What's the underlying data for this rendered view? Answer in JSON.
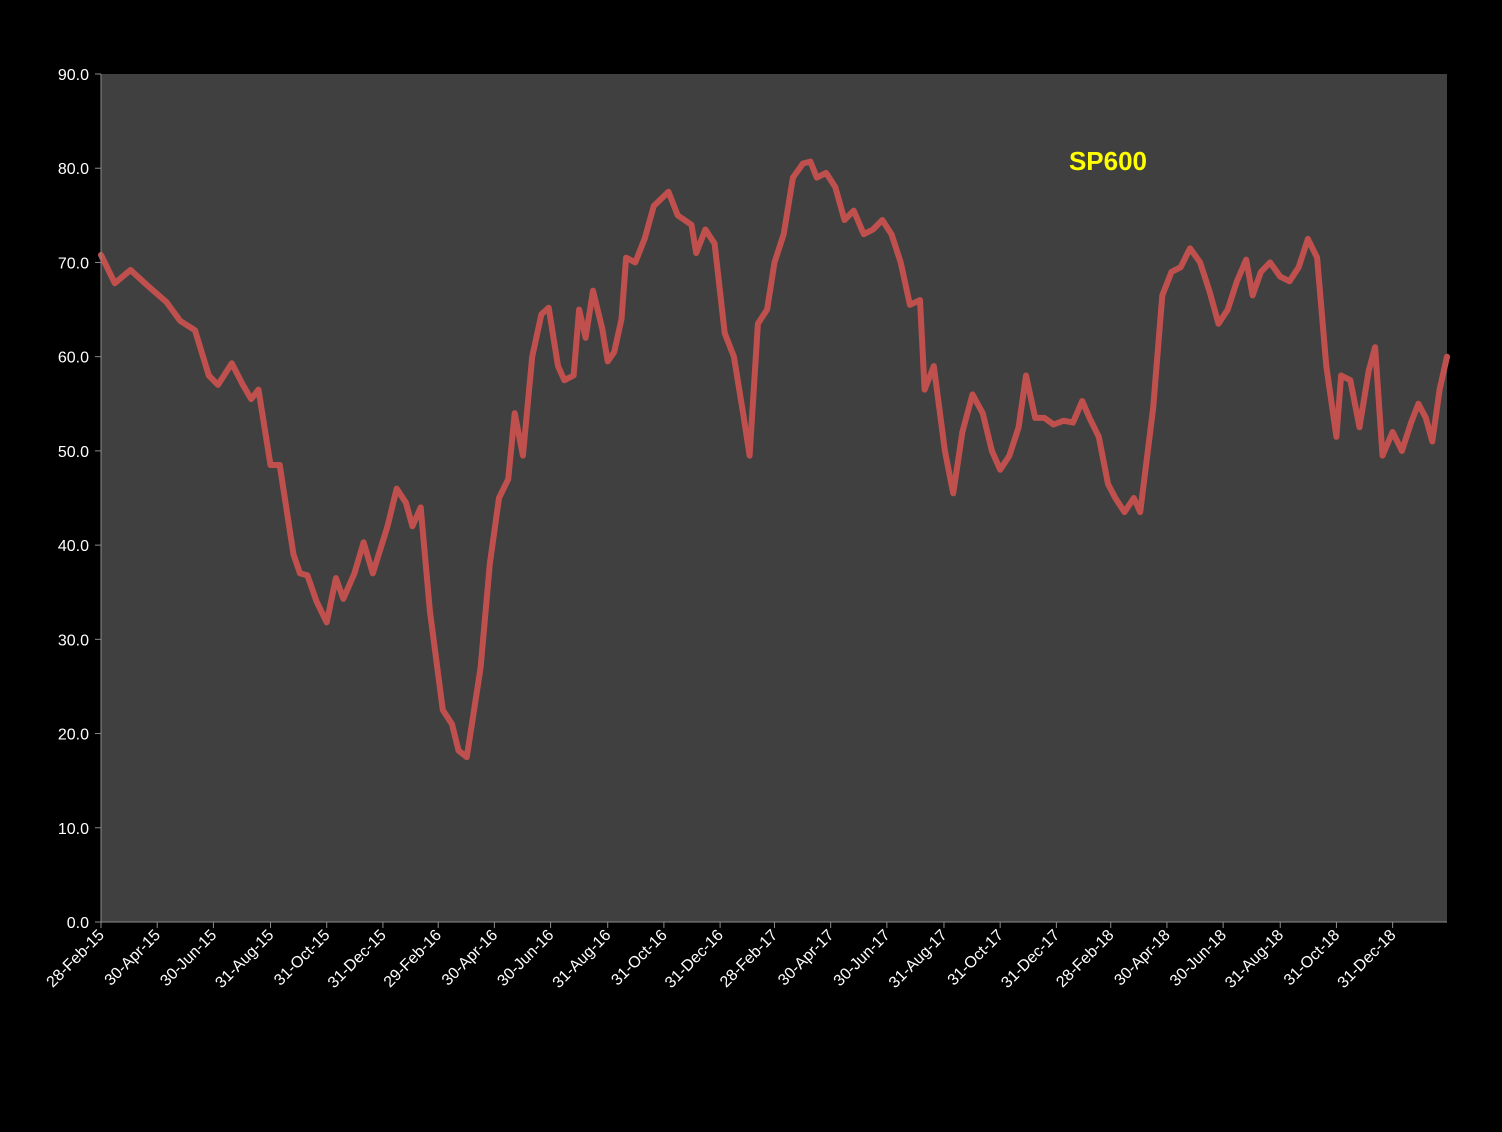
{
  "chart_data": {
    "type": "line",
    "title": "SP600",
    "xlabel": "",
    "ylabel": "",
    "ylim": [
      0,
      90
    ],
    "yticks": [
      0,
      10,
      20,
      30,
      40,
      50,
      60,
      70,
      80,
      90
    ],
    "ytick_labels": [
      "0.0",
      "10.0",
      "20.0",
      "30.0",
      "40.0",
      "50.0",
      "60.0",
      "70.0",
      "80.0",
      "90.0"
    ],
    "x_start": "2015-02-28",
    "x_end": "2019-02-28",
    "xtick_labels": [
      "28-Feb-15",
      "30-Apr-15",
      "30-Jun-15",
      "31-Aug-15",
      "31-Oct-15",
      "31-Dec-15",
      "29-Feb-16",
      "30-Apr-16",
      "30-Jun-16",
      "31-Aug-16",
      "31-Oct-16",
      "31-Dec-16",
      "28-Feb-17",
      "30-Apr-17",
      "30-Jun-17",
      "31-Aug-17",
      "31-Oct-17",
      "31-Dec-17",
      "28-Feb-18",
      "30-Apr-18",
      "30-Jun-18",
      "31-Aug-18",
      "31-Oct-18",
      "31-Dec-18"
    ],
    "grid": false,
    "legend": "none",
    "colors": {
      "background": "#000000",
      "plot_area": "#404040",
      "axis": "#8c8c8c",
      "tick_text": "#ffffff",
      "title": "#ffff00"
    },
    "series": [
      {
        "color": "#c0504d",
        "points": [
          [
            "2015-02-28",
            70.8
          ],
          [
            "2015-03-15",
            67.8
          ],
          [
            "2015-04-01",
            69.2
          ],
          [
            "2015-04-20",
            67.5
          ],
          [
            "2015-05-10",
            65.8
          ],
          [
            "2015-05-25",
            63.8
          ],
          [
            "2015-06-10",
            62.8
          ],
          [
            "2015-06-25",
            58.0
          ],
          [
            "2015-07-05",
            57.0
          ],
          [
            "2015-07-20",
            59.3
          ],
          [
            "2015-08-01",
            57.0
          ],
          [
            "2015-08-10",
            55.5
          ],
          [
            "2015-08-18",
            56.5
          ],
          [
            "2015-08-31",
            48.5
          ],
          [
            "2015-09-10",
            48.5
          ],
          [
            "2015-09-25",
            39.0
          ],
          [
            "2015-10-02",
            37.0
          ],
          [
            "2015-10-10",
            36.8
          ],
          [
            "2015-10-20",
            34.0
          ],
          [
            "2015-10-31",
            31.8
          ],
          [
            "2015-11-10",
            36.5
          ],
          [
            "2015-11-18",
            34.3
          ],
          [
            "2015-11-30",
            37.0
          ],
          [
            "2015-12-10",
            40.3
          ],
          [
            "2015-12-20",
            37.0
          ],
          [
            "2016-01-05",
            42.0
          ],
          [
            "2016-01-15",
            46.0
          ],
          [
            "2016-01-25",
            44.5
          ],
          [
            "2016-02-01",
            42.0
          ],
          [
            "2016-02-10",
            44.0
          ],
          [
            "2016-02-20",
            33.0
          ],
          [
            "2016-03-05",
            22.5
          ],
          [
            "2016-03-15",
            21.0
          ],
          [
            "2016-03-22",
            18.2
          ],
          [
            "2016-03-31",
            17.5
          ],
          [
            "2016-04-15",
            27.0
          ],
          [
            "2016-04-25",
            38.0
          ],
          [
            "2016-05-05",
            45.0
          ],
          [
            "2016-05-15",
            47.0
          ],
          [
            "2016-05-22",
            54.0
          ],
          [
            "2016-05-31",
            49.5
          ],
          [
            "2016-06-10",
            60.0
          ],
          [
            "2016-06-20",
            64.5
          ],
          [
            "2016-06-28",
            65.2
          ],
          [
            "2016-07-08",
            59.0
          ],
          [
            "2016-07-15",
            57.5
          ],
          [
            "2016-07-25",
            58.0
          ],
          [
            "2016-07-31",
            65.0
          ],
          [
            "2016-08-07",
            62.0
          ],
          [
            "2016-08-15",
            67.0
          ],
          [
            "2016-08-25",
            63.0
          ],
          [
            "2016-08-31",
            59.5
          ],
          [
            "2016-09-07",
            60.5
          ],
          [
            "2016-09-15",
            64.0
          ],
          [
            "2016-09-20",
            70.5
          ],
          [
            "2016-09-30",
            70.0
          ],
          [
            "2016-10-10",
            72.5
          ],
          [
            "2016-10-20",
            76.0
          ],
          [
            "2016-11-05",
            77.5
          ],
          [
            "2016-11-15",
            75.0
          ],
          [
            "2016-11-30",
            74.0
          ],
          [
            "2016-12-05",
            71.0
          ],
          [
            "2016-12-15",
            73.5
          ],
          [
            "2016-12-25",
            72.0
          ],
          [
            "2017-01-05",
            62.5
          ],
          [
            "2017-01-15",
            60.0
          ],
          [
            "2017-01-25",
            54.0
          ],
          [
            "2017-02-01",
            49.5
          ],
          [
            "2017-02-10",
            63.5
          ],
          [
            "2017-02-20",
            65.0
          ],
          [
            "2017-02-28",
            70.0
          ],
          [
            "2017-03-10",
            73.0
          ],
          [
            "2017-03-20",
            79.0
          ],
          [
            "2017-03-31",
            80.5
          ],
          [
            "2017-04-08",
            80.7
          ],
          [
            "2017-04-15",
            79.0
          ],
          [
            "2017-04-25",
            79.5
          ],
          [
            "2017-05-05",
            78.0
          ],
          [
            "2017-05-15",
            74.5
          ],
          [
            "2017-05-25",
            75.5
          ],
          [
            "2017-06-05",
            73.0
          ],
          [
            "2017-06-15",
            73.5
          ],
          [
            "2017-06-25",
            74.5
          ],
          [
            "2017-07-05",
            73.0
          ],
          [
            "2017-07-15",
            70.0
          ],
          [
            "2017-07-25",
            65.5
          ],
          [
            "2017-08-05",
            66.0
          ],
          [
            "2017-08-10",
            56.5
          ],
          [
            "2017-08-20",
            59.0
          ],
          [
            "2017-09-01",
            50.0
          ],
          [
            "2017-09-10",
            45.5
          ],
          [
            "2017-09-20",
            52.0
          ],
          [
            "2017-10-01",
            56.0
          ],
          [
            "2017-10-12",
            54.0
          ],
          [
            "2017-10-22",
            50.0
          ],
          [
            "2017-10-31",
            48.0
          ],
          [
            "2017-11-10",
            49.5
          ],
          [
            "2017-11-20",
            52.5
          ],
          [
            "2017-11-28",
            58.0
          ],
          [
            "2017-12-08",
            53.5
          ],
          [
            "2017-12-18",
            53.5
          ],
          [
            "2017-12-28",
            52.8
          ],
          [
            "2018-01-08",
            53.2
          ],
          [
            "2018-01-18",
            53.0
          ],
          [
            "2018-01-28",
            55.3
          ],
          [
            "2018-02-05",
            53.5
          ],
          [
            "2018-02-15",
            51.5
          ],
          [
            "2018-02-25",
            46.5
          ],
          [
            "2018-03-05",
            45.0
          ],
          [
            "2018-03-15",
            43.5
          ],
          [
            "2018-03-25",
            45.0
          ],
          [
            "2018-04-01",
            43.5
          ],
          [
            "2018-04-15",
            54.5
          ],
          [
            "2018-04-25",
            66.5
          ],
          [
            "2018-05-05",
            69.0
          ],
          [
            "2018-05-15",
            69.5
          ],
          [
            "2018-05-25",
            71.5
          ],
          [
            "2018-06-05",
            70.0
          ],
          [
            "2018-06-15",
            67.0
          ],
          [
            "2018-06-25",
            63.5
          ],
          [
            "2018-07-05",
            65.0
          ],
          [
            "2018-07-15",
            68.0
          ],
          [
            "2018-07-25",
            70.3
          ],
          [
            "2018-08-01",
            66.5
          ],
          [
            "2018-08-10",
            69.0
          ],
          [
            "2018-08-20",
            70.0
          ],
          [
            "2018-08-31",
            68.5
          ],
          [
            "2018-09-10",
            68.0
          ],
          [
            "2018-09-20",
            69.5
          ],
          [
            "2018-09-30",
            72.5
          ],
          [
            "2018-10-10",
            70.5
          ],
          [
            "2018-10-20",
            59.0
          ],
          [
            "2018-10-31",
            51.5
          ],
          [
            "2018-11-05",
            58.0
          ],
          [
            "2018-11-15",
            57.5
          ],
          [
            "2018-11-25",
            52.5
          ],
          [
            "2018-12-05",
            58.5
          ],
          [
            "2018-12-12",
            61.0
          ],
          [
            "2018-12-20",
            49.5
          ],
          [
            "2018-12-31",
            52.0
          ],
          [
            "2019-01-10",
            50.0
          ],
          [
            "2019-01-20",
            53.0
          ],
          [
            "2019-01-28",
            55.0
          ],
          [
            "2019-02-05",
            53.5
          ],
          [
            "2019-02-12",
            51.0
          ],
          [
            "2019-02-20",
            56.5
          ],
          [
            "2019-02-28",
            60.0
          ]
        ]
      }
    ]
  }
}
